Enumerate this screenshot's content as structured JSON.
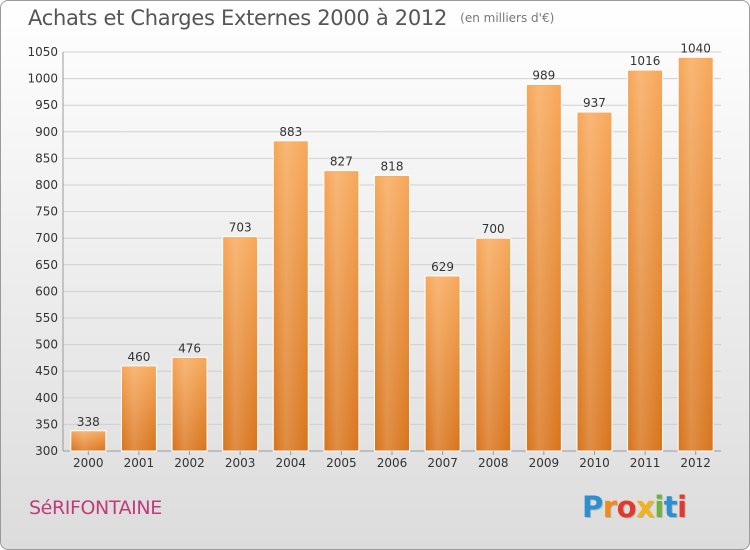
{
  "header": {
    "title": "Achats et Charges Externes 2000 à 2012",
    "unit": "(en milliers d'€)"
  },
  "footer": {
    "commune": "SéRIFONTAINE",
    "brand": "Proxiti"
  },
  "colors": {
    "bar_top": "#f7a85a",
    "bar_bottom": "#d8741c",
    "grid": "#cfcfcf",
    "axis_text": "#333333",
    "commune": "#c03b79"
  },
  "chart_data": {
    "type": "bar",
    "categories": [
      "2000",
      "2001",
      "2002",
      "2003",
      "2004",
      "2005",
      "2006",
      "2007",
      "2008",
      "2009",
      "2010",
      "2011",
      "2012"
    ],
    "values": [
      338,
      460,
      476,
      703,
      883,
      827,
      818,
      629,
      700,
      989,
      937,
      1016,
      1040
    ],
    "data_labels": [
      "338",
      "460",
      "476",
      "703",
      "883",
      "827",
      "818",
      "629",
      "700",
      "989",
      "937",
      "1016",
      "1040"
    ],
    "ylim": [
      300,
      1050
    ],
    "yticks": [
      300,
      350,
      400,
      450,
      500,
      550,
      600,
      650,
      700,
      750,
      800,
      850,
      900,
      950,
      1000,
      1050
    ],
    "grid": true,
    "legend": "none"
  }
}
